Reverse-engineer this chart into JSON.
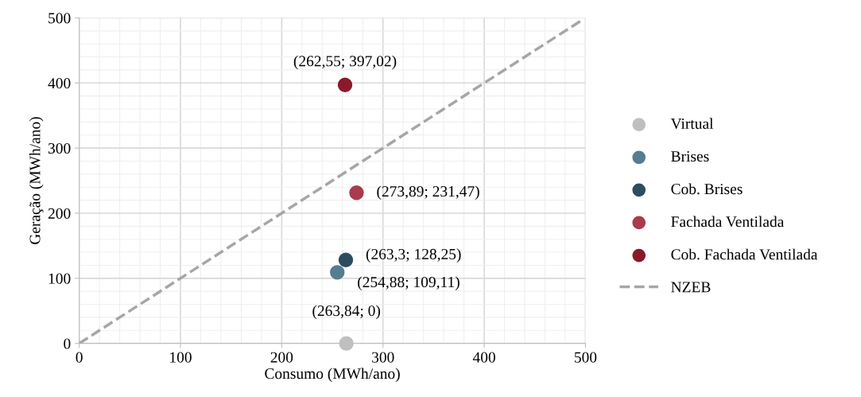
{
  "chart_data": {
    "type": "scatter",
    "xlabel": "Consumo (MWh/ano)",
    "ylabel": "Geração (MWh/ano)",
    "xlim": [
      0,
      500
    ],
    "ylim": [
      0,
      500
    ],
    "xticks": [
      0,
      100,
      200,
      300,
      400,
      500
    ],
    "yticks": [
      0,
      100,
      200,
      300,
      400,
      500
    ],
    "grid": true,
    "legend": "right",
    "marker": "circle",
    "series": [
      {
        "name": "Virtual",
        "color": "#bfbfbf",
        "x": [
          263.84
        ],
        "values": [
          0
        ]
      },
      {
        "name": "Brises",
        "color": "#557d90",
        "x": [
          254.88
        ],
        "values": [
          109.11
        ]
      },
      {
        "name": "Cob. Brises",
        "color": "#2c4d5e",
        "x": [
          263.3
        ],
        "values": [
          128.25
        ]
      },
      {
        "name": "Fachada Ventilada",
        "color": "#a93b4d",
        "x": [
          273.89
        ],
        "values": [
          231.47
        ]
      },
      {
        "name": "Cob. Fachada Ventilada",
        "color": "#8a1a2b",
        "x": [
          262.55
        ],
        "values": [
          397.02
        ]
      },
      {
        "name": "NZEB",
        "type": "line",
        "line_style": "dashed",
        "marker": "none",
        "color": "#a6a6a6",
        "x": [
          0,
          495
        ],
        "values": [
          0,
          495
        ]
      }
    ],
    "annotations": [
      {
        "text": "(263,84; 0)",
        "x": 263.84,
        "y": 0
      },
      {
        "text": "(254,88; 109,11)",
        "x": 254.88,
        "y": 109.11
      },
      {
        "text": "(263,3; 128,25)",
        "x": 263.3,
        "y": 128.25
      },
      {
        "text": "(273,89; 231,47)",
        "x": 273.89,
        "y": 231.47
      },
      {
        "text": "(262,55; 397,02)",
        "x": 262.55,
        "y": 397.02
      }
    ]
  }
}
